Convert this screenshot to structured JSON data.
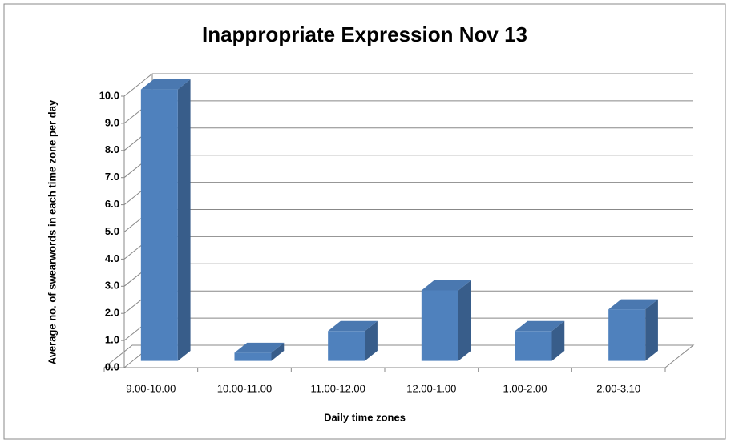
{
  "chart_data": {
    "type": "bar3d",
    "title": "Inappropriate Expression Nov 13",
    "x_label": "Daily time zones",
    "y_label": "Average no. of swearwords in each time zone per day",
    "categories": [
      "9.00-10.00",
      "10.00-11.00",
      "11.00-12.00",
      "12.00-1.00",
      "1.00-2.00",
      "2.00-3.10"
    ],
    "values": [
      10.0,
      0.3,
      1.1,
      2.6,
      1.1,
      1.9
    ],
    "color": "#4f81bd",
    "ylim": [
      0,
      10
    ],
    "yticks": [
      {
        "value": 0,
        "label": "0.0"
      },
      {
        "value": 1,
        "label": "1.0"
      },
      {
        "value": 2,
        "label": "2.0"
      },
      {
        "value": 3,
        "label": "3.0"
      },
      {
        "value": 4,
        "label": "4.0"
      },
      {
        "value": 5,
        "label": "5.0"
      },
      {
        "value": 6,
        "label": "6.0"
      },
      {
        "value": 7,
        "label": "7.0"
      },
      {
        "value": 8,
        "label": "8.0"
      },
      {
        "value": 9,
        "label": "9.0"
      },
      {
        "value": 10,
        "label": "10.0"
      }
    ],
    "grid": true
  }
}
